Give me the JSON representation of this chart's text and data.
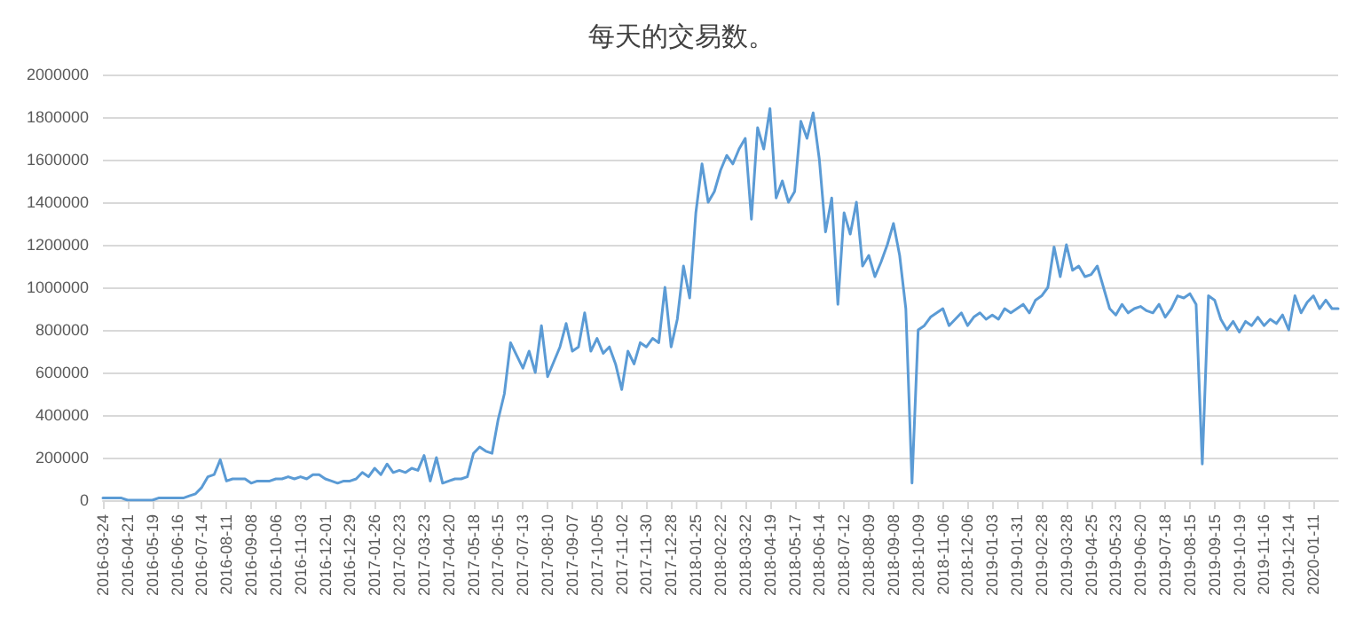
{
  "chart_data": {
    "type": "line",
    "title": "每天的交易数。",
    "categories": [
      "2016-03-24",
      null,
      null,
      null,
      "2016-04-21",
      null,
      null,
      null,
      "2016-05-19",
      null,
      null,
      null,
      "2016-06-16",
      null,
      null,
      null,
      "2016-07-14",
      null,
      null,
      null,
      "2016-08-11",
      null,
      null,
      null,
      "2016-09-08",
      null,
      null,
      null,
      "2016-10-06",
      null,
      null,
      null,
      "2016-11-03",
      null,
      null,
      null,
      "2016-12-01",
      null,
      null,
      null,
      "2016-12-29",
      null,
      null,
      null,
      "2017-01-26",
      null,
      null,
      null,
      "2017-02-23",
      null,
      null,
      null,
      "2017-03-23",
      null,
      null,
      null,
      "2017-04-20",
      null,
      null,
      null,
      "2017-05-18",
      null,
      null,
      null,
      "2017-06-15",
      null,
      null,
      null,
      "2017-07-13",
      null,
      null,
      null,
      "2017-08-10",
      null,
      null,
      null,
      "2017-09-07",
      null,
      null,
      null,
      "2017-10-05",
      null,
      null,
      null,
      "2017-11-02",
      null,
      null,
      null,
      "2017-11-30",
      null,
      null,
      null,
      "2017-12-28",
      null,
      null,
      null,
      "2018-01-25",
      null,
      null,
      null,
      "2018-02-22",
      null,
      null,
      null,
      "2018-03-22",
      null,
      null,
      null,
      "2018-04-19",
      null,
      null,
      null,
      "2018-05-17",
      null,
      null,
      null,
      "2018-06-14",
      null,
      null,
      null,
      "2018-07-12",
      null,
      null,
      null,
      "2018-08-09",
      null,
      null,
      null,
      "2018-09-08",
      null,
      null,
      null,
      "2018-10-09",
      null,
      null,
      null,
      "2018-11-06",
      null,
      null,
      null,
      "2018-12-06",
      null,
      null,
      null,
      "2019-01-03",
      null,
      null,
      null,
      "2019-01-31",
      null,
      null,
      null,
      "2019-02-28",
      null,
      null,
      null,
      "2019-03-28",
      null,
      null,
      null,
      "2019-04-25",
      null,
      null,
      null,
      "2019-05-23",
      null,
      null,
      null,
      "2019-06-20",
      null,
      null,
      null,
      "2019-07-18",
      null,
      null,
      null,
      "2019-08-15",
      null,
      null,
      null,
      "2019-09-15",
      null,
      null,
      null,
      "2019-10-19",
      null,
      null,
      null,
      "2019-11-16",
      null,
      null,
      null,
      "2019-12-14",
      null,
      null,
      null,
      "2020-01-11",
      null,
      null,
      null,
      null
    ],
    "series": [
      {
        "color": "#5b9bd5",
        "values": [
          10000,
          10000,
          10000,
          10000,
          0,
          0,
          0,
          0,
          0,
          10000,
          10000,
          10000,
          10000,
          10000,
          20000,
          30000,
          60000,
          110000,
          120000,
          190000,
          90000,
          100000,
          100000,
          100000,
          80000,
          90000,
          90000,
          90000,
          100000,
          100000,
          110000,
          100000,
          110000,
          100000,
          120000,
          120000,
          100000,
          90000,
          80000,
          90000,
          90000,
          100000,
          130000,
          110000,
          150000,
          120000,
          170000,
          130000,
          140000,
          130000,
          150000,
          140000,
          210000,
          90000,
          200000,
          80000,
          90000,
          100000,
          100000,
          110000,
          220000,
          250000,
          230000,
          220000,
          380000,
          500000,
          740000,
          680000,
          620000,
          700000,
          600000,
          820000,
          580000,
          650000,
          720000,
          830000,
          700000,
          720000,
          880000,
          700000,
          760000,
          690000,
          720000,
          640000,
          520000,
          700000,
          640000,
          740000,
          720000,
          760000,
          740000,
          1000000,
          720000,
          850000,
          1100000,
          950000,
          1350000,
          1580000,
          1400000,
          1450000,
          1550000,
          1620000,
          1580000,
          1650000,
          1700000,
          1320000,
          1750000,
          1650000,
          1840000,
          1420000,
          1500000,
          1400000,
          1450000,
          1780000,
          1700000,
          1820000,
          1600000,
          1260000,
          1420000,
          920000,
          1350000,
          1250000,
          1400000,
          1100000,
          1150000,
          1050000,
          1120000,
          1200000,
          1300000,
          1150000,
          900000,
          80000,
          800000,
          820000,
          860000,
          880000,
          900000,
          820000,
          850000,
          880000,
          820000,
          860000,
          880000,
          850000,
          870000,
          850000,
          900000,
          880000,
          900000,
          920000,
          880000,
          940000,
          960000,
          1000000,
          1190000,
          1050000,
          1200000,
          1080000,
          1100000,
          1050000,
          1060000,
          1100000,
          1000000,
          900000,
          870000,
          920000,
          880000,
          900000,
          910000,
          890000,
          880000,
          920000,
          860000,
          900000,
          960000,
          950000,
          970000,
          920000,
          170000,
          960000,
          940000,
          850000,
          800000,
          840000,
          790000,
          840000,
          820000,
          860000,
          820000,
          850000,
          830000,
          870000,
          800000,
          960000,
          880000,
          930000,
          960000,
          900000,
          940000,
          900000,
          900000
        ]
      }
    ],
    "ylim": [
      0,
      2000000
    ],
    "yticks": [
      0,
      200000,
      400000,
      600000,
      800000,
      1000000,
      1200000,
      1400000,
      1600000,
      1800000,
      2000000
    ],
    "grid": "y",
    "marker": "none",
    "line_style": "solid"
  }
}
